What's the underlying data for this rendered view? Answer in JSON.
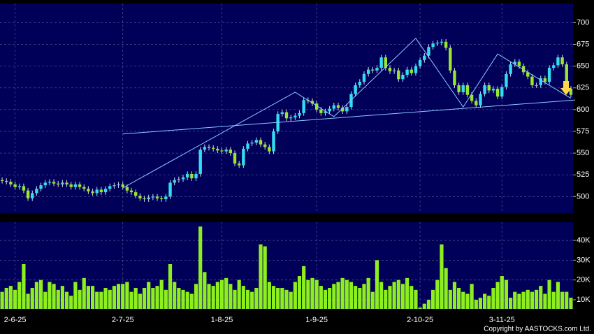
{
  "chart_data": {
    "type": "candlestick",
    "grid": true,
    "up_color": "#33ddf0",
    "down_color": "#99e62a",
    "wick_color": "#d8d8e8",
    "volume_color": "#8eef1e",
    "trendline_color": "#8fc8ff",
    "categories": [
      null,
      null,
      null,
      "2-6-25",
      null,
      null,
      null,
      null,
      null,
      null,
      null,
      null,
      null,
      null,
      null,
      null,
      null,
      null,
      null,
      null,
      null,
      null,
      null,
      null,
      null,
      null,
      null,
      null,
      "2-7-25",
      null,
      null,
      null,
      null,
      null,
      null,
      null,
      null,
      null,
      null,
      null,
      null,
      null,
      null,
      null,
      null,
      null,
      null,
      null,
      null,
      null,
      null,
      "1-8-25",
      null,
      null,
      null,
      null,
      null,
      null,
      null,
      null,
      null,
      null,
      null,
      null,
      null,
      null,
      null,
      null,
      null,
      null,
      null,
      null,
      null,
      "1-9-25",
      null,
      null,
      null,
      null,
      null,
      null,
      null,
      null,
      null,
      null,
      null,
      null,
      null,
      null,
      null,
      null,
      null,
      null,
      null,
      null,
      null,
      null,
      null,
      "2-10-25",
      null,
      null,
      null,
      null,
      null,
      null,
      null,
      null,
      null,
      null,
      null,
      null,
      null,
      null,
      null,
      null,
      null,
      null,
      "3-11-25",
      null,
      null,
      null,
      null,
      null,
      null,
      null,
      null,
      null,
      null,
      null,
      null,
      null,
      null,
      null,
      null
    ],
    "open": [
      519,
      518,
      517,
      514,
      511,
      512,
      507,
      498,
      504,
      509,
      513,
      516,
      517,
      515,
      514,
      516,
      514,
      511,
      514,
      511,
      509,
      506,
      504,
      508,
      505,
      509,
      512,
      513,
      514,
      511,
      507,
      505,
      501,
      498,
      497,
      499,
      500,
      498,
      497,
      500,
      516,
      519,
      520,
      522,
      526,
      521,
      526,
      554,
      557,
      556,
      555,
      553,
      552,
      554,
      550,
      538,
      536,
      555,
      561,
      562,
      565,
      560,
      557,
      552,
      575,
      595,
      597,
      590,
      591,
      593,
      596,
      611,
      610,
      607,
      600,
      596,
      598,
      601,
      605,
      602,
      598,
      603,
      618,
      628,
      632,
      641,
      646,
      645,
      648,
      660,
      648,
      644,
      645,
      635,
      640,
      646,
      642,
      650,
      657,
      662,
      672,
      676,
      677,
      678,
      671,
      645,
      628,
      620,
      628,
      617,
      610,
      605,
      618,
      628,
      622,
      624,
      615,
      626,
      641,
      652,
      655,
      650,
      643,
      638,
      628,
      628,
      636,
      632,
      648,
      651,
      660,
      652,
      624
    ],
    "high": [
      522,
      521,
      520,
      517,
      515,
      515,
      510,
      507,
      512,
      516,
      519,
      520,
      520,
      518,
      519,
      519,
      517,
      517,
      517,
      514,
      512,
      509,
      511,
      511,
      512,
      515,
      516,
      517,
      517,
      514,
      510,
      508,
      504,
      501,
      502,
      503,
      503,
      501,
      503,
      519,
      522,
      523,
      525,
      529,
      529,
      529,
      557,
      560,
      560,
      559,
      558,
      556,
      557,
      557,
      553,
      541,
      558,
      564,
      565,
      568,
      568,
      563,
      560,
      578,
      598,
      600,
      600,
      594,
      596,
      599,
      614,
      614,
      613,
      610,
      603,
      601,
      604,
      608,
      608,
      605,
      606,
      621,
      631,
      635,
      644,
      649,
      649,
      651,
      663,
      663,
      651,
      648,
      648,
      643,
      649,
      649,
      653,
      660,
      665,
      675,
      679,
      680,
      681,
      681,
      674,
      648,
      631,
      631,
      631,
      620,
      613,
      621,
      631,
      631,
      627,
      627,
      629,
      644,
      655,
      658,
      658,
      653,
      646,
      641,
      631,
      639,
      639,
      651,
      654,
      663,
      663,
      655,
      627
    ],
    "low": [
      515,
      514,
      511,
      508,
      508,
      504,
      495,
      495,
      501,
      506,
      510,
      513,
      512,
      511,
      511,
      511,
      508,
      508,
      508,
      506,
      503,
      501,
      501,
      502,
      502,
      506,
      509,
      510,
      508,
      504,
      502,
      498,
      495,
      494,
      494,
      496,
      495,
      494,
      494,
      497,
      513,
      516,
      517,
      519,
      518,
      518,
      523,
      551,
      553,
      552,
      550,
      549,
      549,
      547,
      535,
      533,
      533,
      552,
      558,
      559,
      557,
      554,
      549,
      549,
      572,
      592,
      587,
      587,
      588,
      590,
      593,
      607,
      604,
      597,
      593,
      593,
      595,
      598,
      599,
      595,
      595,
      600,
      615,
      625,
      629,
      638,
      642,
      642,
      645,
      645,
      641,
      641,
      632,
      632,
      637,
      639,
      639,
      647,
      654,
      659,
      669,
      673,
      674,
      668,
      642,
      625,
      617,
      617,
      614,
      607,
      602,
      602,
      615,
      619,
      619,
      612,
      612,
      623,
      638,
      649,
      647,
      640,
      635,
      625,
      625,
      625,
      629,
      629,
      645,
      648,
      649,
      621,
      614
    ],
    "close": [
      518,
      517,
      514,
      511,
      512,
      507,
      498,
      504,
      509,
      513,
      516,
      517,
      515,
      514,
      516,
      514,
      511,
      514,
      511,
      509,
      506,
      504,
      508,
      505,
      509,
      512,
      513,
      514,
      511,
      507,
      505,
      501,
      498,
      497,
      499,
      500,
      498,
      497,
      500,
      516,
      519,
      520,
      522,
      526,
      521,
      526,
      554,
      557,
      556,
      555,
      553,
      552,
      554,
      550,
      538,
      536,
      555,
      561,
      562,
      565,
      560,
      557,
      552,
      575,
      595,
      597,
      590,
      591,
      593,
      596,
      611,
      610,
      607,
      600,
      596,
      598,
      601,
      605,
      602,
      598,
      603,
      618,
      628,
      632,
      641,
      646,
      645,
      648,
      660,
      648,
      644,
      645,
      635,
      640,
      646,
      642,
      650,
      657,
      662,
      672,
      676,
      677,
      678,
      671,
      645,
      628,
      620,
      628,
      617,
      610,
      605,
      618,
      628,
      622,
      624,
      615,
      626,
      641,
      652,
      655,
      650,
      643,
      638,
      628,
      628,
      636,
      632,
      648,
      651,
      660,
      652,
      624,
      617
    ],
    "volume": [
      14000,
      16000,
      17000,
      15000,
      19000,
      28000,
      13000,
      16000,
      19000,
      20000,
      14000,
      19000,
      18000,
      15000,
      17000,
      14000,
      12000,
      19000,
      15000,
      21000,
      17000,
      17000,
      14000,
      14000,
      16000,
      15000,
      17000,
      18000,
      18000,
      19000,
      14000,
      16000,
      13000,
      16000,
      19000,
      16000,
      17000,
      20000,
      15000,
      28000,
      19000,
      16000,
      15000,
      14000,
      13000,
      18000,
      47000,
      24000,
      18000,
      17000,
      19000,
      20000,
      21000,
      18000,
      15000,
      20000,
      17000,
      15000,
      14000,
      16000,
      38000,
      37000,
      19000,
      17000,
      16000,
      16000,
      15000,
      14000,
      19000,
      22000,
      27000,
      20000,
      21000,
      20000,
      17000,
      15000,
      16000,
      18000,
      19000,
      21000,
      20000,
      19000,
      17000,
      16000,
      18000,
      21000,
      14000,
      30000,
      19000,
      15000,
      17000,
      19000,
      20000,
      18000,
      21000,
      17000,
      15000,
      6000,
      8000,
      10000,
      15000,
      20000,
      38000,
      26000,
      15000,
      19000,
      16000,
      14000,
      13000,
      18000,
      10000,
      11000,
      13000,
      12000,
      16000,
      19000,
      22000,
      20000,
      11000,
      14000,
      13000,
      14000,
      15000,
      14000,
      15000,
      17000,
      13000,
      20000,
      14000,
      19000,
      14000,
      14000,
      11000
    ],
    "ylim": [
      481,
      722
    ],
    "yticks": [
      500,
      525,
      550,
      575,
      600,
      625,
      650,
      675,
      700
    ],
    "volume_ylim": [
      5400,
      49200
    ],
    "volume_yticks": [
      {
        "value": 10000,
        "label": "10K"
      },
      {
        "value": 20000,
        "label": "20K"
      },
      {
        "value": 30000,
        "label": "30K"
      },
      {
        "value": 40000,
        "label": "40K"
      }
    ],
    "trendlines": [
      {
        "points": [
          [
            28,
            572
          ],
          [
            133,
            611
          ]
        ]
      },
      {
        "points": [
          [
            28,
            510
          ],
          [
            68,
            620
          ],
          [
            77,
            592
          ],
          [
            96,
            682
          ],
          [
            107,
            603
          ],
          [
            115,
            664
          ],
          [
            132,
            613
          ]
        ]
      }
    ],
    "copyright": "Copyright by AASTOCKS.com Ltd."
  }
}
